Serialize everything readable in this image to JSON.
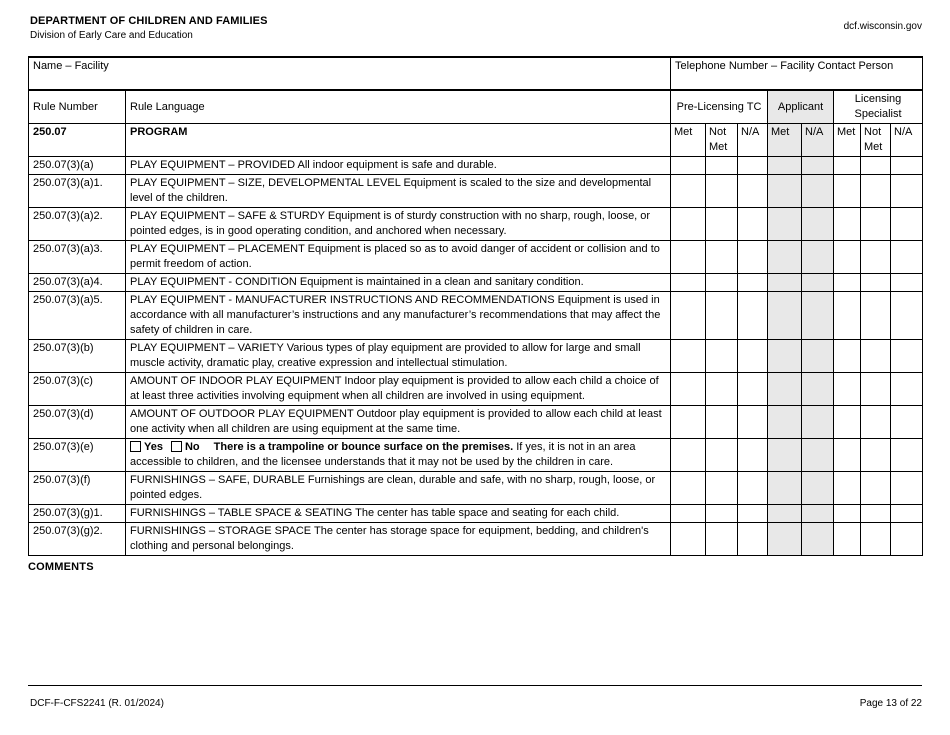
{
  "header": {
    "agency": "DEPARTMENT OF CHILDREN AND FAMILIES",
    "division": "Division of Early Care and Education",
    "website": "dcf.wisconsin.gov"
  },
  "facility_row": {
    "name_label": "Name – Facility",
    "name_value": "",
    "phone_label": "Telephone Number – Facility Contact Person",
    "phone_value": ""
  },
  "table": {
    "rule_number_header": "Rule Number",
    "rule_language_header": "Rule Language",
    "groups": [
      {
        "label": "Pre-Licensing TC",
        "subcolumns": [
          "Met",
          "Not Met",
          "N/A"
        ],
        "shaded": false
      },
      {
        "label": "Applicant",
        "subcolumns": [
          "Met",
          "N/A"
        ],
        "shaded": true
      },
      {
        "label": "Licensing Specialist",
        "subcolumns": [
          "Met",
          "Not Met",
          "N/A"
        ],
        "shaded": false
      }
    ],
    "section_row": {
      "rule_number": "250.07",
      "rule_language": "PROGRAM"
    },
    "rows": [
      {
        "rule_number": "250.07(3)(a)",
        "rule_language": "PLAY EQUIPMENT – PROVIDED All indoor equipment is safe and durable."
      },
      {
        "rule_number": "250.07(3)(a)1.",
        "rule_language": "PLAY EQUIPMENT – SIZE, DEVELOPMENTAL LEVEL Equipment is scaled to the size and developmental level of the children."
      },
      {
        "rule_number": "250.07(3)(a)2.",
        "rule_language": "PLAY EQUIPMENT – SAFE & STURDY Equipment is of sturdy construction with no sharp, rough, loose, or pointed edges, is in good operating condition, and anchored when necessary."
      },
      {
        "rule_number": "250.07(3)(a)3.",
        "rule_language": "PLAY EQUIPMENT – PLACEMENT Equipment is placed so as to avoid danger of accident or collision and to permit freedom of action."
      },
      {
        "rule_number": "250.07(3)(a)4.",
        "rule_language": "PLAY EQUIPMENT - CONDITION Equipment is maintained in a clean and sanitary condition."
      },
      {
        "rule_number": "250.07(3)(a)5.",
        "rule_language": "PLAY EQUIPMENT - MANUFACTURER INSTRUCTIONS AND RECOMMENDATIONS Equipment is used in accordance with all manufacturer’s instructions and any manufacturer’s recommendations that may affect the safety of children in care."
      },
      {
        "rule_number": "250.07(3)(b)",
        "rule_language": "PLAY EQUIPMENT – VARIETY Various types of play equipment are provided to allow for large and small muscle activity, dramatic play, creative expression and intellectual stimulation."
      },
      {
        "rule_number": "250.07(3)(c)",
        "rule_language": "AMOUNT OF INDOOR PLAY EQUIPMENT Indoor play equipment is provided to allow each child a choice of at least three activities involving equipment when all children are involved in using equipment."
      },
      {
        "rule_number": "250.07(3)(d)",
        "rule_language": "AMOUNT OF OUTDOOR PLAY EQUIPMENT Outdoor play equipment is provided to allow each child at least one activity when all children are using equipment at the same time."
      },
      {
        "rule_number": "250.07(3)(e)",
        "checkboxes": [
          "Yes",
          "No"
        ],
        "bold_text": "There is a trampoline or bounce surface on the premises.",
        "rule_language": "If yes, it is not in an area accessible to children, and the licensee understands that it may not be used by the children in care."
      },
      {
        "rule_number": "250.07(3)(f)",
        "rule_language": "FURNISHINGS – SAFE, DURABLE Furnishings are clean, durable and safe, with no sharp, rough, loose, or pointed edges."
      },
      {
        "rule_number": "250.07(3)(g)1.",
        "rule_language": "FURNISHINGS – TABLE SPACE & SEATING The center has table space and seating for each child."
      },
      {
        "rule_number": "250.07(3)(g)2.",
        "rule_language": "FURNISHINGS – STORAGE SPACE The center has storage space for equipment, bedding, and children's clothing and personal belongings."
      }
    ]
  },
  "comments_label": "COMMENTS",
  "footer": {
    "form_id": "DCF-F-CFS2241 (R. 01/2024)",
    "page": "Page 13 of 22"
  },
  "colors": {
    "shaded_column": "#e8e8e8",
    "border": "#000000"
  }
}
